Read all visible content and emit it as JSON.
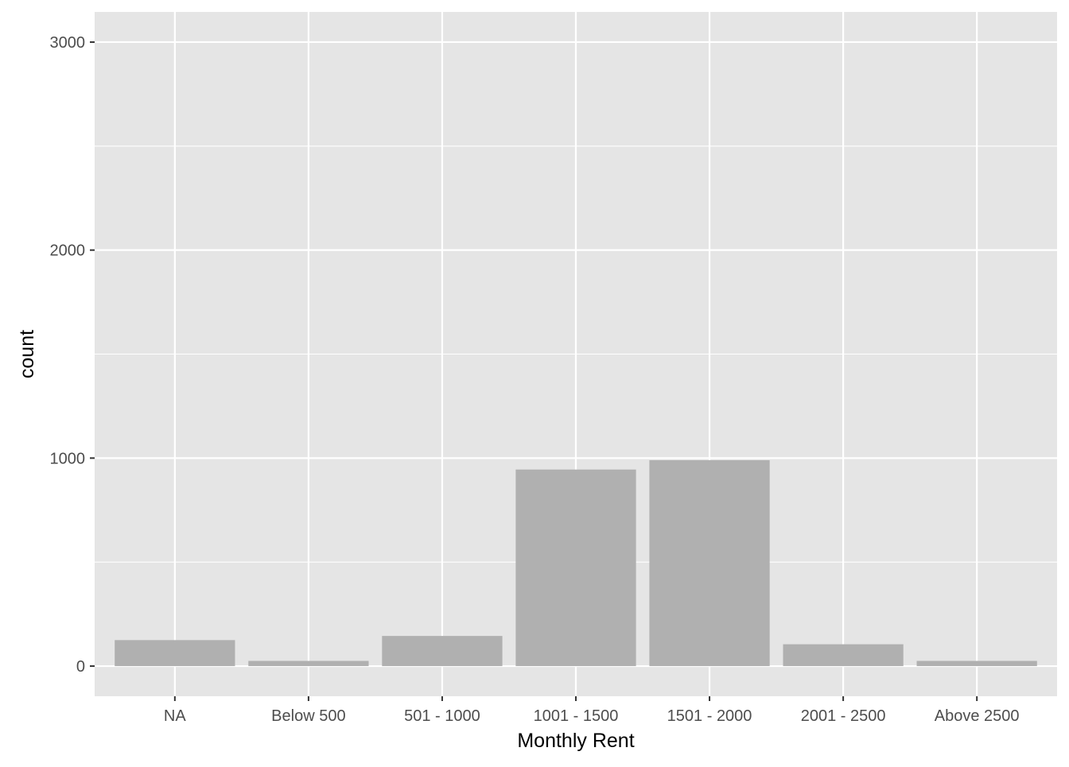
{
  "chart_data": {
    "type": "bar",
    "xlabel": "Monthly Rent",
    "ylabel": "count",
    "categories": [
      "NA",
      "Below 500",
      "501 - 1000",
      "1001 - 1500",
      "1501 - 2000",
      "2001 - 2500",
      "Above 2500"
    ],
    "values": [
      125,
      25,
      145,
      945,
      990,
      105,
      25
    ],
    "ylim": [
      -145,
      3145
    ],
    "yticks": [
      0,
      1000,
      2000,
      3000
    ],
    "ytick_labels": [
      "0",
      "1000",
      "2000",
      "3000"
    ],
    "grid": true,
    "legend": "none",
    "colors": {
      "panel": "#e5e5e5",
      "grid": "#ffffff",
      "bar": "#b0b0b0",
      "tick_text": "#4d4d4d",
      "tick_mark": "#333333",
      "title_text": "#000000"
    }
  }
}
